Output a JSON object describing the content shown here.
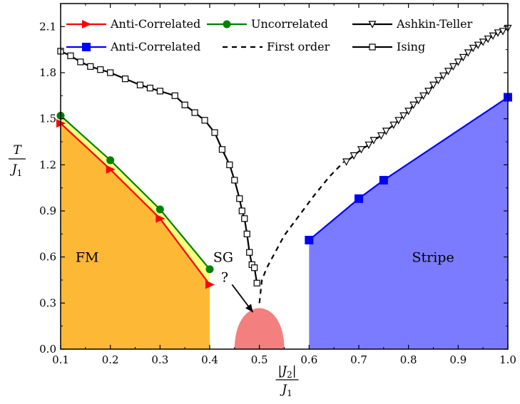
{
  "chart_data": {
    "type": "line",
    "xlabel": {
      "num": "|J",
      "num_sub": "2",
      "num_close": "|",
      "den": "J",
      "den_sub": "1"
    },
    "ylabel": {
      "num": "T",
      "den": "J",
      "den_sub": "1"
    },
    "xlim": [
      0.1,
      1.0
    ],
    "ylim": [
      0.0,
      2.25
    ],
    "xticks": [
      "0.1",
      "0.2",
      "0.3",
      "0.4",
      "0.5",
      "0.6",
      "0.7",
      "0.8",
      "0.9",
      "1.0"
    ],
    "yticks": [
      "0.0",
      "0.3",
      "0.6",
      "0.9",
      "1.2",
      "1.5",
      "1.8",
      "2.1"
    ],
    "legend": {
      "placement": "top",
      "entries": [
        {
          "key": "anti_fm",
          "label": "Anti-Correlated"
        },
        {
          "key": "uncorr",
          "label": "Uncorrelated"
        },
        {
          "key": "ashkin",
          "label": "Ashkin-Teller"
        },
        {
          "key": "anti_stripe",
          "label": "Anti-Correlated"
        },
        {
          "key": "first_order",
          "label": "First order"
        },
        {
          "key": "ising",
          "label": "Ising"
        }
      ]
    },
    "series": [
      {
        "key": "anti_fm",
        "color": "#ff0000",
        "marker": "right-triangle",
        "x": [
          0.1,
          0.2,
          0.3,
          0.4
        ],
        "y": [
          1.47,
          1.17,
          0.85,
          0.42
        ]
      },
      {
        "key": "uncorr",
        "color": "#008000",
        "marker": "circle",
        "x": [
          0.1,
          0.2,
          0.3,
          0.4
        ],
        "y": [
          1.52,
          1.23,
          0.91,
          0.52
        ]
      },
      {
        "key": "ising",
        "color": "#000000",
        "marker": "open-square",
        "x": [
          0.1,
          0.12,
          0.14,
          0.16,
          0.18,
          0.2,
          0.23,
          0.26,
          0.28,
          0.3,
          0.33,
          0.35,
          0.37,
          0.39,
          0.41,
          0.425,
          0.44,
          0.45,
          0.46,
          0.465,
          0.47,
          0.475,
          0.48,
          0.485,
          0.49,
          0.495
        ],
        "y": [
          1.94,
          1.91,
          1.87,
          1.84,
          1.82,
          1.8,
          1.76,
          1.72,
          1.7,
          1.68,
          1.65,
          1.59,
          1.54,
          1.49,
          1.41,
          1.3,
          1.2,
          1.1,
          0.98,
          0.9,
          0.85,
          0.75,
          0.63,
          0.55,
          0.53,
          0.43
        ]
      },
      {
        "key": "first_order",
        "color": "#000000",
        "style": "dashed",
        "x": [
          0.5,
          0.505,
          0.515,
          0.53,
          0.55,
          0.58,
          0.61,
          0.64,
          0.67
        ],
        "y": [
          0.3,
          0.45,
          0.53,
          0.62,
          0.74,
          0.87,
          1.0,
          1.12,
          1.22
        ]
      },
      {
        "key": "ashkin",
        "color": "#000000",
        "marker": "down-triangle",
        "x": [
          0.675,
          0.69,
          0.705,
          0.72,
          0.73,
          0.745,
          0.755,
          0.77,
          0.78,
          0.79,
          0.8,
          0.81,
          0.82,
          0.83,
          0.84,
          0.85,
          0.86,
          0.87,
          0.88,
          0.89,
          0.9,
          0.91,
          0.92,
          0.93,
          0.94,
          0.95,
          0.96,
          0.97,
          0.98,
          0.99,
          1.0
        ],
        "y": [
          1.22,
          1.26,
          1.3,
          1.33,
          1.36,
          1.39,
          1.42,
          1.46,
          1.49,
          1.52,
          1.55,
          1.59,
          1.62,
          1.65,
          1.68,
          1.72,
          1.75,
          1.78,
          1.81,
          1.84,
          1.87,
          1.9,
          1.93,
          1.96,
          1.98,
          2.0,
          2.02,
          2.04,
          2.06,
          2.07,
          2.09
        ]
      },
      {
        "key": "anti_stripe",
        "color": "#0000ff",
        "marker": "square",
        "x": [
          0.6,
          0.7,
          0.75,
          1.0
        ],
        "y": [
          0.71,
          0.98,
          1.1,
          1.64
        ]
      }
    ],
    "regions": [
      {
        "key": "fm",
        "label": "FM",
        "color": "#fdb935",
        "label_x": 0.15,
        "label_y": 0.6
      },
      {
        "key": "stripe",
        "label": "Stripe",
        "color": "#7b7bff",
        "label_x": 0.85,
        "label_y": 0.6
      },
      {
        "key": "sg",
        "label": "SG",
        "label2": "?",
        "color": "#f47f7f",
        "center_x": 0.5,
        "half_width": 0.05,
        "peak_y": 0.3,
        "label_x": 0.44,
        "label_y": 0.6
      }
    ],
    "sg_arrow": {
      "from": [
        0.445,
        0.42
      ],
      "to": [
        0.487,
        0.24
      ]
    }
  }
}
